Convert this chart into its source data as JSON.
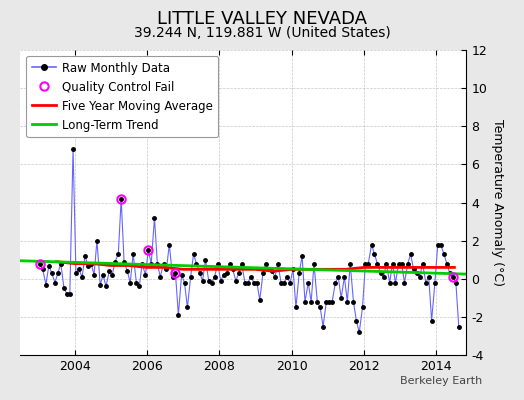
{
  "title": "LITTLE VALLEY NEVADA",
  "subtitle": "39.244 N, 119.881 W (United States)",
  "ylabel": "Temperature Anomaly (°C)",
  "watermark": "Berkeley Earth",
  "xlim": [
    2002.5,
    2014.83
  ],
  "ylim": [
    -4,
    12
  ],
  "yticks": [
    -4,
    -2,
    0,
    2,
    4,
    6,
    8,
    10,
    12
  ],
  "xticks": [
    2004,
    2006,
    2008,
    2010,
    2012,
    2014
  ],
  "raw_color": "#6666ff",
  "ma_color": "#ff0000",
  "trend_color": "#00cc00",
  "qc_color": "#ff00ff",
  "bg_color": "#e8e8e8",
  "plot_bg": "#ffffff",
  "raw_data_times": [
    2003.04,
    2003.12,
    2003.21,
    2003.29,
    2003.37,
    2003.46,
    2003.54,
    2003.62,
    2003.71,
    2003.79,
    2003.87,
    2003.96,
    2004.04,
    2004.12,
    2004.21,
    2004.29,
    2004.37,
    2004.46,
    2004.54,
    2004.62,
    2004.71,
    2004.79,
    2004.87,
    2004.96,
    2005.04,
    2005.12,
    2005.21,
    2005.29,
    2005.37,
    2005.46,
    2005.54,
    2005.62,
    2005.71,
    2005.79,
    2005.87,
    2005.96,
    2006.04,
    2006.12,
    2006.21,
    2006.29,
    2006.37,
    2006.46,
    2006.54,
    2006.62,
    2006.71,
    2006.79,
    2006.87,
    2006.96,
    2007.04,
    2007.12,
    2007.21,
    2007.29,
    2007.37,
    2007.46,
    2007.54,
    2007.62,
    2007.71,
    2007.79,
    2007.87,
    2007.96,
    2008.04,
    2008.12,
    2008.21,
    2008.29,
    2008.37,
    2008.46,
    2008.54,
    2008.62,
    2008.71,
    2008.79,
    2008.87,
    2008.96,
    2009.04,
    2009.12,
    2009.21,
    2009.29,
    2009.37,
    2009.46,
    2009.54,
    2009.62,
    2009.71,
    2009.79,
    2009.87,
    2009.96,
    2010.04,
    2010.12,
    2010.21,
    2010.29,
    2010.37,
    2010.46,
    2010.54,
    2010.62,
    2010.71,
    2010.79,
    2010.87,
    2010.96,
    2011.04,
    2011.12,
    2011.21,
    2011.29,
    2011.37,
    2011.46,
    2011.54,
    2011.62,
    2011.71,
    2011.79,
    2011.87,
    2011.96,
    2012.04,
    2012.12,
    2012.21,
    2012.29,
    2012.37,
    2012.46,
    2012.54,
    2012.62,
    2012.71,
    2012.79,
    2012.87,
    2012.96,
    2013.04,
    2013.12,
    2013.21,
    2013.29,
    2013.37,
    2013.46,
    2013.54,
    2013.62,
    2013.71,
    2013.79,
    2013.87,
    2013.96,
    2014.04,
    2014.12,
    2014.21,
    2014.29,
    2014.37,
    2014.46,
    2014.54,
    2014.62
  ],
  "raw_data_values": [
    0.8,
    0.5,
    -0.3,
    0.7,
    0.3,
    -0.2,
    0.3,
    0.8,
    -0.5,
    -0.8,
    -0.8,
    6.8,
    0.3,
    0.5,
    0.1,
    1.2,
    0.7,
    0.8,
    0.2,
    2.0,
    -0.3,
    0.2,
    -0.4,
    0.4,
    0.2,
    0.9,
    1.3,
    4.2,
    0.9,
    0.4,
    -0.2,
    1.3,
    -0.2,
    -0.4,
    0.8,
    0.2,
    1.5,
    0.8,
    3.2,
    0.8,
    0.1,
    0.8,
    0.5,
    1.8,
    0.1,
    0.3,
    -1.9,
    0.2,
    -0.2,
    -1.5,
    0.1,
    1.3,
    0.8,
    0.3,
    -0.1,
    1.0,
    -0.1,
    -0.2,
    0.1,
    0.8,
    -0.1,
    0.2,
    0.3,
    0.8,
    0.5,
    -0.1,
    0.3,
    0.8,
    -0.2,
    -0.2,
    0.1,
    -0.2,
    -0.2,
    -1.1,
    0.3,
    0.8,
    0.5,
    0.4,
    0.1,
    0.8,
    -0.2,
    -0.2,
    0.1,
    -0.2,
    0.5,
    -1.5,
    0.3,
    1.2,
    -1.2,
    -0.2,
    -1.2,
    0.8,
    -1.2,
    -1.5,
    -2.5,
    -1.2,
    -1.2,
    -1.2,
    -0.2,
    0.1,
    -1.0,
    0.1,
    -1.2,
    0.8,
    -1.2,
    -2.2,
    -2.8,
    -1.5,
    0.8,
    0.8,
    1.8,
    1.3,
    0.8,
    0.3,
    0.1,
    0.8,
    -0.2,
    0.8,
    -0.2,
    0.8,
    0.8,
    -0.2,
    0.8,
    1.3,
    0.5,
    0.3,
    0.1,
    0.8,
    -0.2,
    0.1,
    -2.2,
    -0.2,
    1.8,
    1.8,
    1.3,
    0.8,
    0.3,
    0.1,
    -0.2,
    -2.5
  ],
  "qc_fail_times": [
    2003.04,
    2005.29,
    2006.04,
    2006.79,
    2014.46
  ],
  "qc_fail_values": [
    0.8,
    4.2,
    1.5,
    0.3,
    0.1
  ],
  "moving_avg_times": [
    2003.5,
    2004.0,
    2004.5,
    2005.0,
    2005.5,
    2006.0,
    2006.5,
    2007.0,
    2007.5,
    2008.0,
    2008.5,
    2009.0,
    2009.5,
    2010.0,
    2010.5,
    2011.0,
    2011.5,
    2012.0,
    2012.5,
    2013.0,
    2013.5,
    2014.0,
    2014.5
  ],
  "moving_avg_values": [
    0.9,
    0.8,
    0.8,
    0.7,
    0.7,
    0.6,
    0.6,
    0.5,
    0.5,
    0.5,
    0.5,
    0.5,
    0.4,
    0.5,
    0.5,
    0.5,
    0.5,
    0.6,
    0.6,
    0.6,
    0.6,
    0.6,
    0.6
  ],
  "trend_times": [
    2002.5,
    2014.83
  ],
  "trend_values": [
    0.95,
    0.25
  ],
  "title_fontsize": 13,
  "subtitle_fontsize": 10,
  "tick_fontsize": 9,
  "ylabel_fontsize": 9,
  "legend_fontsize": 8.5
}
